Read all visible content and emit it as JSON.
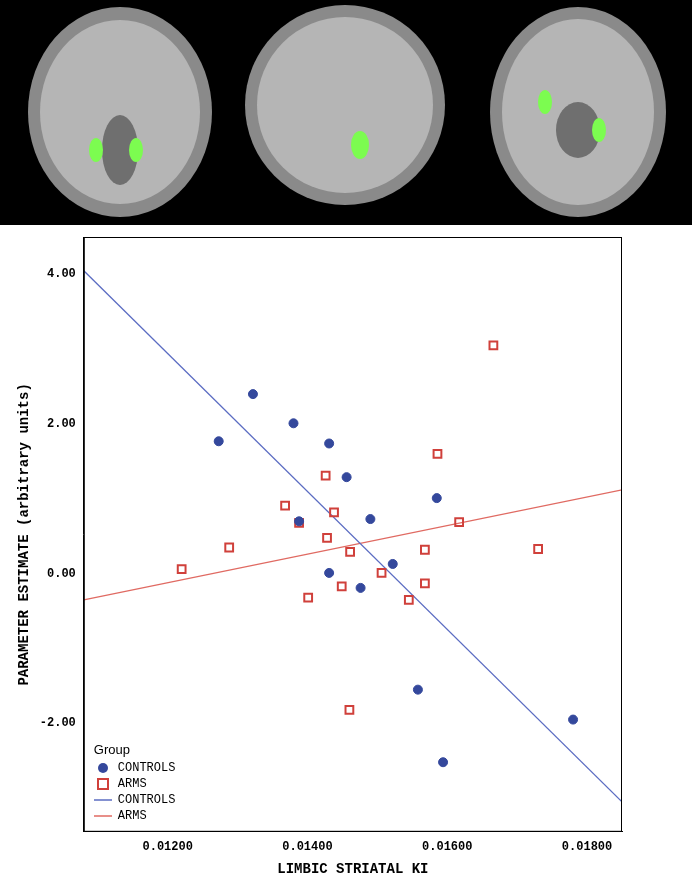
{
  "chart_data": {
    "type": "scatter",
    "x_label": "LIMBIC STRIATAL KI",
    "y_label": "PARAMETER ESTIMATE (arbitrary units)",
    "xlim": [
      0.0108,
      0.0185
    ],
    "ylim": [
      -3.45,
      4.5
    ],
    "xticks": [
      {
        "value": 0.012,
        "label": "0.01200"
      },
      {
        "value": 0.014,
        "label": "0.01400"
      },
      {
        "value": 0.016,
        "label": "0.01600"
      },
      {
        "value": 0.018,
        "label": "0.01800"
      }
    ],
    "yticks": [
      {
        "value": -2,
        "label": "-2.00"
      },
      {
        "value": 0,
        "label": "0.00"
      },
      {
        "value": 2,
        "label": "2.00"
      },
      {
        "value": 4,
        "label": "4.00"
      }
    ],
    "grid": false,
    "legend": "bottom left",
    "legend_title": "Group",
    "series": [
      {
        "name": "CONTROLS",
        "type": "scatter",
        "marker": "circle",
        "color": "#34489c",
        "x": [
          0.01273,
          0.01322,
          0.0138,
          0.01431,
          0.01456,
          0.01388,
          0.0149,
          0.01431,
          0.01476,
          0.01522,
          0.01585,
          0.01558,
          0.01594,
          0.0178
        ],
        "values": [
          1.77,
          2.4,
          2.01,
          1.74,
          1.29,
          0.7,
          0.73,
          0.01,
          -0.19,
          0.13,
          1.01,
          -1.55,
          -2.52,
          -1.95
        ]
      },
      {
        "name": "ARMS",
        "type": "scatter",
        "marker": "square",
        "color": "#d0403b",
        "x": [
          0.0122,
          0.01288,
          0.01368,
          0.01388,
          0.01401,
          0.01426,
          0.01428,
          0.01438,
          0.01449,
          0.01461,
          0.0146,
          0.01506,
          0.01545,
          0.01568,
          0.01568,
          0.01586,
          0.01617,
          0.01666,
          0.0173
        ],
        "values": [
          0.06,
          0.35,
          0.91,
          0.68,
          -0.32,
          1.31,
          0.48,
          0.82,
          -0.17,
          0.29,
          -1.82,
          0.01,
          -0.35,
          0.32,
          -0.13,
          1.6,
          0.69,
          3.05,
          0.33
        ]
      },
      {
        "name": "CONTROLS",
        "type": "line",
        "line_style": "solid",
        "color": "#5b6cc2",
        "x": [
          0.0108,
          0.0185
        ],
        "values": [
          4.05,
          -3.05
        ]
      },
      {
        "name": "ARMS",
        "type": "line",
        "line_style": "solid",
        "color": "#e06a62",
        "x": [
          0.0108,
          0.0185
        ],
        "values": [
          -0.35,
          1.12
        ]
      }
    ]
  }
}
